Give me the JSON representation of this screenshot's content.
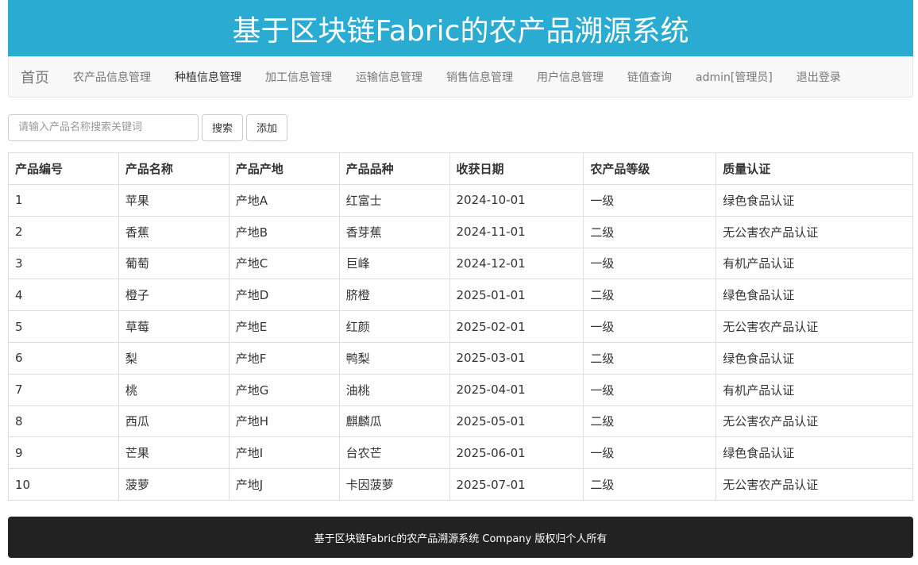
{
  "header": {
    "title": "基于区块链Fabric的农产品溯源系统"
  },
  "nav": {
    "brand": "首页",
    "items": [
      {
        "label": "农产品信息管理"
      },
      {
        "label": "种植信息管理"
      },
      {
        "label": "加工信息管理"
      },
      {
        "label": "运输信息管理"
      },
      {
        "label": "销售信息管理"
      },
      {
        "label": "用户信息管理"
      },
      {
        "label": "链值查询"
      },
      {
        "label": "admin[管理员]"
      },
      {
        "label": "退出登录"
      }
    ]
  },
  "search": {
    "placeholder": "请输入产品名称搜索关键词",
    "value": "",
    "search_label": "搜索",
    "add_label": "添加"
  },
  "table": {
    "columns": [
      "产品编号",
      "产品名称",
      "产品产地",
      "产品品种",
      "收获日期",
      "农产品等级",
      "质量认证"
    ],
    "rows": [
      [
        "1",
        "苹果",
        "产地A",
        "红富士",
        "2024-10-01",
        "一级",
        "绿色食品认证"
      ],
      [
        "2",
        "香蕉",
        "产地B",
        "香芽蕉",
        "2024-11-01",
        "二级",
        "无公害农产品认证"
      ],
      [
        "3",
        "葡萄",
        "产地C",
        "巨峰",
        "2024-12-01",
        "一级",
        "有机产品认证"
      ],
      [
        "4",
        "橙子",
        "产地D",
        "脐橙",
        "2025-01-01",
        "二级",
        "绿色食品认证"
      ],
      [
        "5",
        "草莓",
        "产地E",
        "红颜",
        "2025-02-01",
        "一级",
        "无公害农产品认证"
      ],
      [
        "6",
        "梨",
        "产地F",
        "鸭梨",
        "2025-03-01",
        "二级",
        "绿色食品认证"
      ],
      [
        "7",
        "桃",
        "产地G",
        "油桃",
        "2025-04-01",
        "一级",
        "有机产品认证"
      ],
      [
        "8",
        "西瓜",
        "产地H",
        "麒麟瓜",
        "2025-05-01",
        "二级",
        "无公害农产品认证"
      ],
      [
        "9",
        "芒果",
        "产地I",
        "台农芒",
        "2025-06-01",
        "一级",
        "绿色食品认证"
      ],
      [
        "10",
        "菠萝",
        "产地J",
        "卡因菠萝",
        "2025-07-01",
        "二级",
        "无公害农产品认证"
      ]
    ]
  },
  "footer": {
    "text": "基于区块链Fabric的农产品溯源系统 Company 版权归个人所有"
  },
  "colors": {
    "header_bg": "#2aabd2",
    "navbar_bg": "#f8f8f8",
    "footer_bg": "#222222"
  }
}
